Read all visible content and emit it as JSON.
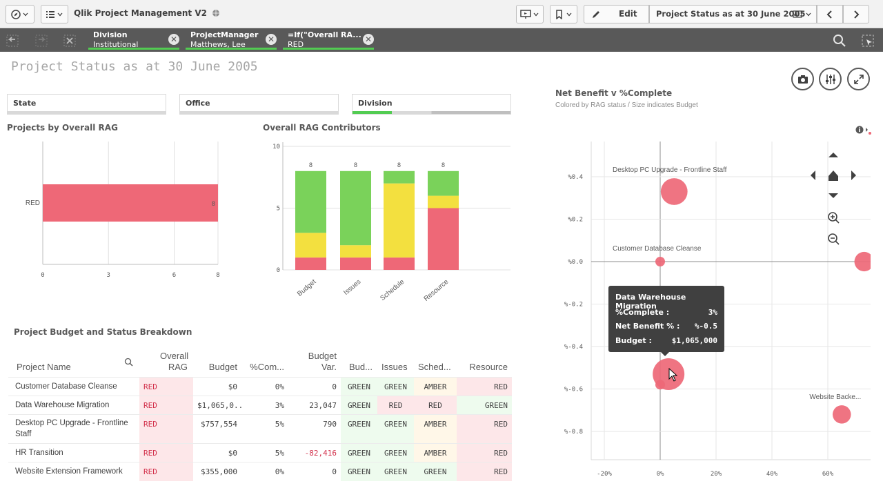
{
  "app": {
    "title": "Qlik Project Management V2"
  },
  "toolbar": {
    "edit_label": "Edit",
    "sheet_name": "Project Status as at 30 June 2005"
  },
  "selections": [
    {
      "field": "Division",
      "value": "Institutional"
    },
    {
      "field": "ProjectManager",
      "value": "Matthews, Lee"
    },
    {
      "field": "=If(\"Overall RA...",
      "value": "RED"
    }
  ],
  "sheet": {
    "title": "Project Status as at 30 June 2005"
  },
  "filters": [
    {
      "label": "State"
    },
    {
      "label": "Office"
    },
    {
      "label": "Division"
    }
  ],
  "colors": {
    "red": "#ee6877",
    "green": "#7ad25a",
    "amber": "#f3e03f",
    "selection_green": "#52cc52"
  },
  "rag_bar_chart": {
    "title": "Projects by Overall RAG",
    "chart_data": {
      "type": "bar",
      "orientation": "horizontal",
      "categories": [
        "RED"
      ],
      "values": [
        8
      ],
      "xticks": [
        "0",
        "3",
        "6",
        "8"
      ],
      "xlim": [
        0,
        8
      ],
      "data_labels": [
        "8"
      ]
    }
  },
  "contributors_chart": {
    "title": "Overall RAG Contributors",
    "chart_data": {
      "type": "bar",
      "stacked": true,
      "categories": [
        "Budget",
        "Issues",
        "Schedule",
        "Resource"
      ],
      "series": [
        {
          "name": "RED",
          "values": [
            1,
            1,
            1,
            5
          ]
        },
        {
          "name": "AMBER",
          "values": [
            2,
            1,
            6,
            1
          ]
        },
        {
          "name": "GREEN",
          "values": [
            5,
            6,
            1,
            2
          ]
        }
      ],
      "totals": [
        "8",
        "8",
        "8",
        "8"
      ],
      "yticks": [
        "0",
        "5",
        "10"
      ],
      "ylim": [
        0,
        10
      ]
    }
  },
  "scatter_chart": {
    "title": "Net Benefit v %Complete",
    "subtitle": "Colored by RAG status / Size indicates Budget",
    "chart_data": {
      "type": "scatter",
      "xticks": [
        "-20%",
        "0%",
        "20%",
        "40%",
        "60%"
      ],
      "yticks": [
        "%0.4",
        "%0.2",
        "%0.0",
        "%-0.2",
        "%-0.4",
        "%-0.6",
        "%-0.8"
      ],
      "points": [
        {
          "label": "Desktop PC Upgrade - Frontline Staff",
          "x": 5,
          "y": 0.33,
          "budget": 757554
        },
        {
          "label": "Customer Database Cleanse",
          "x": 0,
          "y": 0.0,
          "budget": 0
        },
        {
          "label": "",
          "x": 3,
          "y": -0.53,
          "budget": 1065000
        },
        {
          "label": "",
          "x": 0,
          "y": -0.58,
          "budget": 0
        },
        {
          "label": "Website Backe...",
          "x": 65,
          "y": -0.72,
          "budget": 355000
        },
        {
          "label": "",
          "x": 73,
          "y": 0.0,
          "budget": 400000
        }
      ]
    }
  },
  "tooltip": {
    "title": "Data Warehouse Migration",
    "rows": [
      {
        "label": "%Complete :",
        "value": "3%"
      },
      {
        "label": "Net Benefit % :",
        "value": "%-0.5"
      },
      {
        "label": "Budget :",
        "value": "$1,065,000"
      }
    ]
  },
  "table": {
    "title": "Project Budget and Status Breakdown",
    "headers": [
      "Project Name",
      "Overall RAG",
      "Budget",
      "%Com...",
      "Budget Var.",
      "Bud...",
      "Issues",
      "Sched...",
      "Resource"
    ],
    "rows": [
      [
        "Customer Database Cleanse",
        "RED",
        "$0",
        "0%",
        "0",
        "GREEN",
        "GREEN",
        "AMBER",
        "RED"
      ],
      [
        "Data Warehouse Migration",
        "RED",
        "$1,065,0...",
        "3%",
        "23,047",
        "GREEN",
        "RED",
        "RED",
        "GREEN"
      ],
      [
        "Desktop PC Upgrade - Frontline Staff",
        "RED",
        "$757,554",
        "5%",
        "790",
        "GREEN",
        "GREEN",
        "AMBER",
        "RED"
      ],
      [
        "HR Transition",
        "RED",
        "$0",
        "5%",
        "-82,416",
        "GREEN",
        "GREEN",
        "AMBER",
        "RED"
      ],
      [
        "Website Extension Framework",
        "RED",
        "$355,000",
        "0%",
        "0",
        "GREEN",
        "GREEN",
        "GREEN",
        "RED"
      ]
    ]
  }
}
